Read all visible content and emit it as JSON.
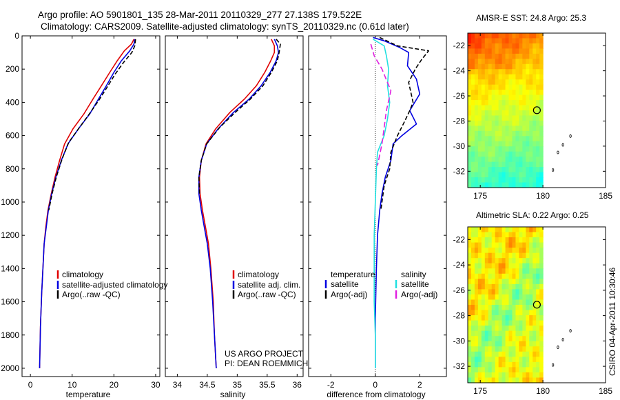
{
  "figure": {
    "title_line1": "Argo profile: AO 5901801_135 28-Mar-2011 20110329_277 27.138S 179.522E",
    "title_line2": "Climatology: CARS2009. Satellite-adjusted climatology: synTS_20110329.nc (0.61d later)",
    "credit_line1": "US ARGO PROJECT",
    "credit_line2": "PI: DEAN ROEMMICH",
    "stamp": "CSIRO 04-Apr-2011 10:30:46"
  },
  "colors": {
    "climatology": "#e00000",
    "satellite": "#0000e0",
    "argo": "#000000",
    "salinity_satellite": "#20e0e0",
    "salinity_argo": "#e020e0"
  },
  "chart_data": [
    {
      "type": "line",
      "panel": "temperature",
      "xlabel": "temperature",
      "ylabel": "",
      "xlim": [
        -2,
        31
      ],
      "ylim": [
        2050,
        0
      ],
      "xticks": [
        0,
        10,
        20,
        30
      ],
      "yticks": [
        0,
        200,
        400,
        600,
        800,
        1000,
        1200,
        1400,
        1600,
        1800,
        2000
      ],
      "legend_position": "lower-right",
      "series": [
        {
          "name": "climatology",
          "color": "#e00000",
          "dash": "",
          "points": [
            [
              24.8,
              20
            ],
            [
              24.2,
              50
            ],
            [
              22.5,
              90
            ],
            [
              20.8,
              150
            ],
            [
              19.0,
              220
            ],
            [
              17.0,
              300
            ],
            [
              15.0,
              380
            ],
            [
              12.8,
              470
            ],
            [
              10.2,
              560
            ],
            [
              8.2,
              650
            ],
            [
              7.0,
              750
            ],
            [
              5.9,
              850
            ],
            [
              5.0,
              950
            ],
            [
              4.2,
              1050
            ],
            [
              3.7,
              1150
            ],
            [
              3.3,
              1250
            ],
            [
              3.0,
              1400
            ],
            [
              2.7,
              1550
            ],
            [
              2.4,
              1750
            ],
            [
              2.2,
              2000
            ]
          ]
        },
        {
          "name": "satellite-adjusted climatology",
          "color": "#0000e0",
          "dash": "",
          "points": [
            [
              25.0,
              20
            ],
            [
              24.8,
              50
            ],
            [
              23.8,
              90
            ],
            [
              21.8,
              150
            ],
            [
              20.0,
              220
            ],
            [
              18.2,
              300
            ],
            [
              16.3,
              380
            ],
            [
              14.2,
              470
            ],
            [
              11.5,
              560
            ],
            [
              9.0,
              650
            ],
            [
              7.4,
              750
            ],
            [
              6.1,
              850
            ],
            [
              5.1,
              950
            ],
            [
              4.3,
              1050
            ],
            [
              3.8,
              1150
            ],
            [
              3.3,
              1250
            ],
            [
              3.0,
              1400
            ],
            [
              2.7,
              1550
            ],
            [
              2.4,
              1750
            ],
            [
              2.2,
              2000
            ]
          ]
        },
        {
          "name": "Argo(..raw -QC)",
          "color": "#000000",
          "dash": "6,3",
          "points": [
            [
              25.2,
              20
            ],
            [
              25.0,
              60
            ],
            [
              24.3,
              100
            ],
            [
              22.3,
              160
            ],
            [
              20.3,
              230
            ],
            [
              18.6,
              300
            ],
            [
              16.6,
              380
            ],
            [
              14.4,
              460
            ],
            [
              11.8,
              550
            ],
            [
              9.2,
              640
            ],
            [
              7.6,
              740
            ],
            [
              6.2,
              850
            ],
            [
              5.2,
              950
            ],
            [
              4.4,
              1050
            ]
          ]
        }
      ],
      "legend": [
        "climatology",
        "satellite-adjusted climatology",
        "Argo(..raw -QC)"
      ]
    },
    {
      "type": "line",
      "panel": "salinity",
      "xlabel": "salinity",
      "ylabel": "",
      "xlim": [
        33.8,
        36.1
      ],
      "ylim": [
        2050,
        0
      ],
      "xticks": [
        34,
        34.5,
        35,
        35.5,
        36
      ],
      "legend_position": "lower-right",
      "series": [
        {
          "name": "climatology",
          "color": "#e00000",
          "dash": "",
          "points": [
            [
              35.57,
              20
            ],
            [
              35.62,
              60
            ],
            [
              35.62,
              100
            ],
            [
              35.56,
              150
            ],
            [
              35.46,
              220
            ],
            [
              35.32,
              300
            ],
            [
              35.12,
              380
            ],
            [
              34.88,
              460
            ],
            [
              34.64,
              560
            ],
            [
              34.48,
              650
            ],
            [
              34.4,
              750
            ],
            [
              34.37,
              850
            ],
            [
              34.38,
              950
            ],
            [
              34.42,
              1050
            ],
            [
              34.47,
              1150
            ],
            [
              34.52,
              1250
            ],
            [
              34.56,
              1400
            ],
            [
              34.6,
              1600
            ],
            [
              34.62,
              1800
            ],
            [
              34.65,
              2000
            ]
          ]
        },
        {
          "name": "satellite adj. clim.",
          "color": "#0000e0",
          "dash": "",
          "points": [
            [
              35.62,
              20
            ],
            [
              35.67,
              60
            ],
            [
              35.69,
              100
            ],
            [
              35.65,
              150
            ],
            [
              35.55,
              220
            ],
            [
              35.4,
              300
            ],
            [
              35.2,
              380
            ],
            [
              34.94,
              460
            ],
            [
              34.68,
              560
            ],
            [
              34.49,
              650
            ],
            [
              34.4,
              750
            ],
            [
              34.36,
              850
            ],
            [
              34.36,
              950
            ],
            [
              34.4,
              1050
            ],
            [
              34.45,
              1150
            ],
            [
              34.5,
              1250
            ],
            [
              34.55,
              1400
            ],
            [
              34.59,
              1600
            ],
            [
              34.62,
              1800
            ],
            [
              34.65,
              2000
            ]
          ]
        },
        {
          "name": "Argo(..raw -QC)",
          "color": "#000000",
          "dash": "6,3",
          "points": [
            [
              35.65,
              20
            ],
            [
              35.72,
              50
            ],
            [
              35.7,
              100
            ],
            [
              35.67,
              150
            ],
            [
              35.57,
              220
            ],
            [
              35.43,
              300
            ],
            [
              35.22,
              380
            ],
            [
              34.97,
              460
            ],
            [
              34.71,
              550
            ],
            [
              34.49,
              650
            ],
            [
              34.4,
              750
            ],
            [
              34.36,
              850
            ],
            [
              34.37,
              950
            ]
          ]
        }
      ],
      "legend": [
        "climatology",
        "satellite adj. clim.",
        "Argo(..raw -QC)"
      ]
    },
    {
      "type": "line",
      "panel": "difference",
      "xlabel": "difference from climatology",
      "ylabel": "",
      "xlim": [
        -3.0,
        3.2
      ],
      "ylim": [
        2050,
        0
      ],
      "xticks": [
        -2,
        0,
        2
      ],
      "zero_line": true,
      "legend_position": "lower",
      "series": [
        {
          "name": "temperature satellite",
          "color": "#0000e0",
          "dash": "",
          "points": [
            [
              -0.1,
              10
            ],
            [
              0.4,
              30
            ],
            [
              1.1,
              70
            ],
            [
              1.5,
              100
            ],
            [
              1.45,
              180
            ],
            [
              1.85,
              260
            ],
            [
              2.0,
              350
            ],
            [
              1.55,
              450
            ],
            [
              1.85,
              530
            ],
            [
              1.2,
              600
            ],
            [
              0.8,
              650
            ],
            [
              0.7,
              750
            ],
            [
              0.45,
              850
            ],
            [
              0.3,
              950
            ],
            [
              0.2,
              1050
            ],
            [
              0.1,
              1200
            ],
            [
              0.05,
              1400
            ],
            [
              0.0,
              1700
            ],
            [
              0.0,
              2000
            ]
          ]
        },
        {
          "name": "temperature Argo(-adj)",
          "color": "#000000",
          "dash": "6,3",
          "points": [
            [
              0.2,
              10
            ],
            [
              1.0,
              60
            ],
            [
              2.4,
              90
            ],
            [
              2.1,
              140
            ],
            [
              1.8,
              200
            ],
            [
              1.5,
              280
            ],
            [
              1.7,
              400
            ],
            [
              1.55,
              450
            ],
            [
              1.3,
              520
            ],
            [
              1.0,
              600
            ],
            [
              0.7,
              700
            ],
            [
              0.65,
              800
            ],
            [
              0.4,
              900
            ],
            [
              0.35,
              950
            ],
            [
              0.25,
              1050
            ]
          ]
        },
        {
          "name": "salinity satellite",
          "color": "#20e0e0",
          "dash": "",
          "points": [
            [
              -0.1,
              20
            ],
            [
              0.4,
              60
            ],
            [
              0.5,
              120
            ],
            [
              0.6,
              200
            ],
            [
              0.55,
              300
            ],
            [
              0.65,
              400
            ],
            [
              0.55,
              500
            ],
            [
              0.4,
              600
            ],
            [
              0.1,
              700
            ],
            [
              0.05,
              800
            ],
            [
              0.0,
              1000
            ],
            [
              -0.05,
              1200
            ],
            [
              -0.05,
              1400
            ],
            [
              -0.05,
              1600
            ],
            [
              0.0,
              1800
            ],
            [
              0.0,
              2000
            ]
          ]
        },
        {
          "name": "salinity Argo(-adj)",
          "color": "#e020e0",
          "dash": "8,4",
          "points": [
            [
              -0.2,
              50
            ],
            [
              -0.05,
              120
            ],
            [
              0.3,
              200
            ],
            [
              0.7,
              330
            ],
            [
              0.5,
              450
            ],
            [
              0.4,
              550
            ],
            [
              0.3,
              650
            ],
            [
              0.1,
              780
            ]
          ]
        }
      ],
      "legend_headers": [
        "temperature",
        "salinity"
      ],
      "legend_left": [
        "satellite",
        "Argo(-adj)"
      ],
      "legend_right": [
        "satellite",
        "Argo(-adj)"
      ]
    },
    {
      "type": "heatmap",
      "panel": "sst-map",
      "title": "AMSR-E SST: 24.8  Argo: 25.3",
      "xlim": [
        174,
        185
      ],
      "ylim": [
        -33.3,
        -21
      ],
      "xticks": [
        175,
        180,
        185
      ],
      "yticks": [
        -22,
        -24,
        -26,
        -28,
        -30,
        -32
      ],
      "profile_location": [
        179.52,
        -27.14
      ],
      "land_specks": [
        [
          182.2,
          -29.2
        ],
        [
          181.6,
          -29.9
        ],
        [
          181.2,
          -30.5
        ],
        [
          180.8,
          -31.9
        ]
      ]
    },
    {
      "type": "heatmap",
      "panel": "sla-map",
      "title": "Altimetric SLA: 0.22  Argo: 0.25",
      "xlim": [
        174,
        185
      ],
      "ylim": [
        -33.3,
        -21
      ],
      "xticks": [
        175,
        180,
        185
      ],
      "yticks": [
        -22,
        -24,
        -26,
        -28,
        -30,
        -32
      ],
      "profile_location": [
        179.52,
        -27.14
      ],
      "land_specks": [
        [
          182.2,
          -29.2
        ],
        [
          181.6,
          -29.9
        ],
        [
          181.2,
          -30.5
        ],
        [
          180.8,
          -31.9
        ]
      ]
    }
  ]
}
